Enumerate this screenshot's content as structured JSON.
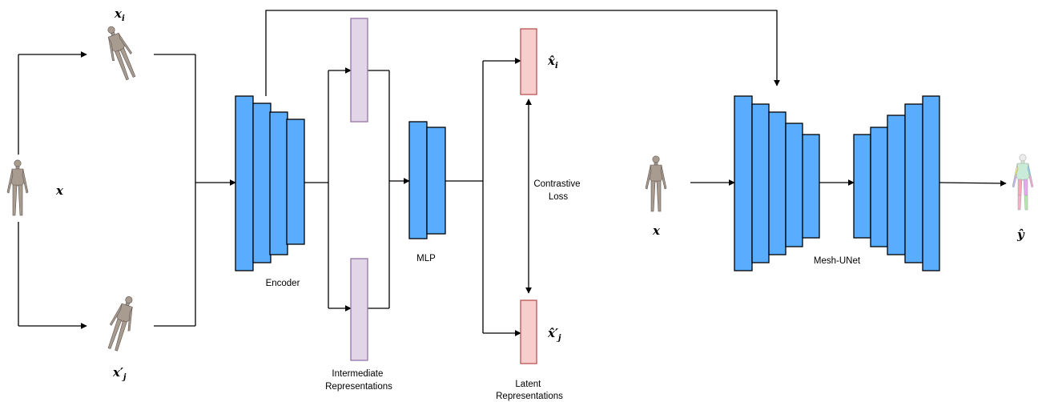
{
  "inputs": {
    "x": "x",
    "x_i": "x",
    "x_i_sub": "i",
    "x_j": "x′",
    "x_j_sub": "j"
  },
  "labels": {
    "encoder": "Encoder",
    "intermediate": [
      "Intermediate",
      "Representations"
    ],
    "mlp": "MLP",
    "contrastive": [
      "Contrastive",
      "Loss"
    ],
    "latent": [
      "Latent",
      "Representations"
    ],
    "mesh_unet": "Mesh-UNet"
  },
  "outputs": {
    "xhat_i": "x̂",
    "xhat_i_sub": "i",
    "xhat_j": "x̂′",
    "xhat_j_sub": "j",
    "x_seg_input": "x",
    "y_hat": "ŷ"
  },
  "colors": {
    "block_fill": "#5aacfe",
    "intermediate_fill": "#e1d5e7",
    "intermediate_stroke": "#9673a6",
    "latent_fill": "#f8cecc",
    "latent_stroke": "#b85450"
  },
  "icons": {
    "mesh": "human-mesh-icon",
    "segmented": "segmented-human-mesh-icon"
  }
}
